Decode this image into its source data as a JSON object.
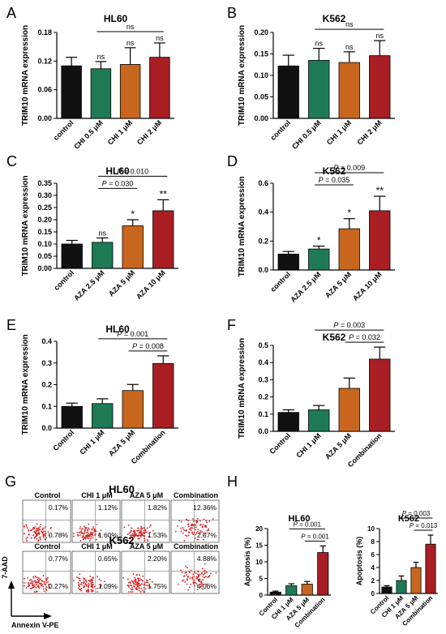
{
  "colors": {
    "black": "#111111",
    "green": "#1e7a55",
    "orange": "#c8661e",
    "red": "#a81e22",
    "dot": "#d42020"
  },
  "ylabel_expr": "TRIM10 mRNA expression",
  "ylabel_apop": "Apoptosis (%)",
  "chart_data": [
    {
      "panel": "A",
      "type": "bar",
      "title": "HL60",
      "ylabel": "TRIM10 mRNA expression",
      "categories": [
        "control",
        "CHI 0.5 μM",
        "CHI 1 μM",
        "CHI 2 μM"
      ],
      "values": [
        0.11,
        0.104,
        0.113,
        0.128
      ],
      "errors": [
        0.018,
        0.015,
        0.035,
        0.03
      ],
      "ylim": [
        0,
        0.18
      ],
      "yticks": [
        "0.00",
        "0.06",
        "0.12",
        "0.18"
      ],
      "annotations": {
        "labels": [
          "",
          "ns",
          "ns",
          "ns"
        ],
        "brackets": [
          {
            "from": 1,
            "to": 3,
            "label": "ns"
          }
        ]
      }
    },
    {
      "panel": "B",
      "type": "bar",
      "title": "K562",
      "ylabel": "TRIM10 mRNA expression",
      "categories": [
        "control",
        "CHI 0.5 μM",
        "CHI 1 μM",
        "CHI 2 μM"
      ],
      "values": [
        0.122,
        0.135,
        0.13,
        0.146
      ],
      "errors": [
        0.025,
        0.028,
        0.025,
        0.035
      ],
      "ylim": [
        0,
        0.2
      ],
      "yticks": [
        "0.00",
        "0.05",
        "0.10",
        "0.15",
        "0.20"
      ],
      "annotations": {
        "labels": [
          "",
          "ns",
          "ns",
          "ns"
        ],
        "brackets": [
          {
            "from": 1,
            "to": 3,
            "label": "ns"
          }
        ]
      }
    },
    {
      "panel": "C",
      "type": "bar",
      "title": "HL60",
      "ylabel": "TRIM10 mRNA expression",
      "categories": [
        "control",
        "AZA 2.5 μM",
        "AZA 5 μM",
        "AZA 10 μM"
      ],
      "values": [
        0.1,
        0.107,
        0.175,
        0.237
      ],
      "errors": [
        0.015,
        0.018,
        0.025,
        0.045
      ],
      "ylim": [
        0,
        0.35
      ],
      "yticks": [
        "0.00",
        "0.05",
        "0.10",
        "0.15",
        "0.20",
        "0.25",
        "0.30",
        "0.35"
      ],
      "annotations": {
        "labels": [
          "",
          "ns",
          "*",
          "**"
        ],
        "brackets": [
          {
            "from": 1,
            "to": 3,
            "label_prefix": "P",
            "label_value": " = 0.010"
          },
          {
            "from": 1,
            "to": 2,
            "label_prefix": "P",
            "label_value": " = 0.030"
          }
        ]
      }
    },
    {
      "panel": "D",
      "type": "bar",
      "title": "K562",
      "ylabel": "TRIM10 mRNA expression",
      "categories": [
        "control",
        "AZA 2.5 μM",
        "AZA 5 μM",
        "AZA 10 μM"
      ],
      "values": [
        0.11,
        0.145,
        0.285,
        0.41
      ],
      "errors": [
        0.018,
        0.02,
        0.07,
        0.1
      ],
      "ylim": [
        0,
        0.6
      ],
      "yticks": [
        "0.0",
        "0.2",
        "0.4",
        "0.6"
      ],
      "annotations": {
        "labels": [
          "",
          "*",
          "*",
          "**"
        ],
        "brackets": [
          {
            "from": 1,
            "to": 3,
            "label_prefix": "P",
            "label_value": " = 0.009"
          },
          {
            "from": 1,
            "to": 2,
            "label_prefix": "P",
            "label_value": " = 0.035"
          }
        ]
      }
    },
    {
      "panel": "E",
      "type": "bar",
      "title": "HL60",
      "ylabel": "TRIM10 mRNA expression",
      "categories": [
        "Control",
        "CHI 1 μM",
        "AZA 5 μM",
        "Combination"
      ],
      "values": [
        0.1,
        0.113,
        0.173,
        0.298
      ],
      "errors": [
        0.015,
        0.022,
        0.028,
        0.035
      ],
      "ylim": [
        0,
        0.4
      ],
      "yticks": [
        "0.0",
        "0.1",
        "0.2",
        "0.3",
        "0.4"
      ],
      "annotations": {
        "labels": [
          "",
          "",
          "",
          ""
        ],
        "brackets": [
          {
            "from": 1,
            "to": 3,
            "label_prefix": "P",
            "label_value": " = 0.001"
          },
          {
            "from": 2,
            "to": 3,
            "label_prefix": "P",
            "label_value": " = 0.008"
          }
        ]
      }
    },
    {
      "panel": "F",
      "type": "bar",
      "title": "K562",
      "ylabel": "TRIM10 mRNA expression",
      "categories": [
        "Control",
        "CHI 1 μM",
        "AZA 5 μM",
        "Combination"
      ],
      "values": [
        0.11,
        0.125,
        0.25,
        0.42
      ],
      "errors": [
        0.015,
        0.025,
        0.06,
        0.07
      ],
      "ylim": [
        0,
        0.5
      ],
      "yticks": [
        "0.0",
        "0.1",
        "0.2",
        "0.3",
        "0.4",
        "0.5"
      ],
      "annotations": {
        "labels": [
          "",
          "",
          "",
          ""
        ],
        "brackets": [
          {
            "from": 1,
            "to": 3,
            "label_prefix": "P",
            "label_value": " = 0.003"
          },
          {
            "from": 2,
            "to": 3,
            "label_prefix": "P",
            "label_value": " = 0.032"
          }
        ]
      }
    },
    {
      "panel": "H1",
      "type": "bar",
      "title": "HL60",
      "ylabel": "Apoptosis (%)",
      "categories": [
        "Control",
        "CHI 1 μM",
        "AZA 5 μM",
        "Combination"
      ],
      "values": [
        0.9,
        2.8,
        3.3,
        12.8
      ],
      "errors": [
        0.3,
        0.6,
        0.8,
        2.0
      ],
      "ylim": [
        0,
        20
      ],
      "yticks": [
        "0",
        "5",
        "10",
        "15",
        "20"
      ],
      "annotations": {
        "labels": [
          "",
          "",
          "",
          ""
        ],
        "brackets": [
          {
            "from": 1,
            "to": 3,
            "label_prefix": "P",
            "label_value": " = 0.001"
          },
          {
            "from": 2,
            "to": 3,
            "label_prefix": "P",
            "label_value": " = 0.001"
          }
        ]
      }
    },
    {
      "panel": "H2",
      "type": "bar",
      "title": "K562",
      "ylabel": "Apoptosis (%)",
      "categories": [
        "Control",
        "CHI 1 μM",
        "AZA 5 μM",
        "Combination"
      ],
      "values": [
        1.0,
        2.0,
        4.0,
        7.6
      ],
      "errors": [
        0.2,
        0.7,
        0.8,
        1.4
      ],
      "ylim": [
        0,
        10
      ],
      "yticks": [
        "0",
        "2",
        "4",
        "6",
        "8",
        "10"
      ],
      "annotations": {
        "labels": [
          "",
          "",
          "",
          ""
        ],
        "brackets": [
          {
            "from": 1,
            "to": 3,
            "label_prefix": "P",
            "label_value": " = 0.003"
          },
          {
            "from": 2,
            "to": 3,
            "label_prefix": "P",
            "label_value": " = 0.013"
          }
        ]
      }
    }
  ],
  "flow": {
    "rows": [
      {
        "title": "HL60",
        "cells": [
          {
            "label": "Control",
            "ur": "0.17%",
            "lr": "0.78%"
          },
          {
            "label": "CHI 1 μM",
            "ur": "1.12%",
            "lr": "1.60%"
          },
          {
            "label": "AZA 5 μM",
            "ur": "1.82%",
            "lr": "1.53%"
          },
          {
            "label": "Combination",
            "ur": "12.36%",
            "lr": "2.57%"
          }
        ]
      },
      {
        "title": "K562",
        "cells": [
          {
            "label": "Control",
            "ur": "0.77%",
            "lr": "0.27%"
          },
          {
            "label": "CHI 1 μM",
            "ur": "0.65%",
            "lr": "1.09%"
          },
          {
            "label": "AZA 5 μM",
            "ur": "2.20%",
            "lr": "1.75%"
          },
          {
            "label": "Combination",
            "ur": "4.88%",
            "lr": "4.06%"
          }
        ]
      }
    ],
    "xaxis": "Annexin V-PE",
    "yaxis": "7-AAD"
  },
  "panel_letters": {
    "A": "A",
    "B": "B",
    "C": "C",
    "D": "D",
    "E": "E",
    "F": "F",
    "G": "G",
    "H": "H"
  }
}
